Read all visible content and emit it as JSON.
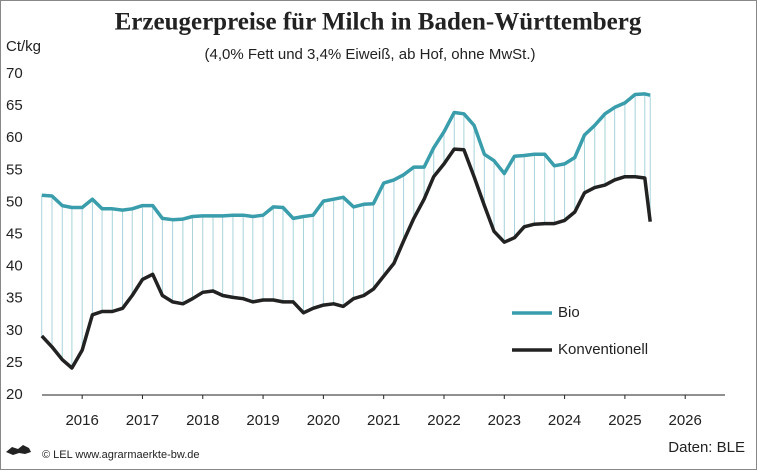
{
  "chart_data": {
    "type": "line",
    "title": "Erzeugerpreise für Milch in Baden-Württemberg",
    "subtitle": "(4,0% Fett und 3,4% Eiweiß, ab Hof, ohne MwSt.)",
    "y_label": "Ct/kg",
    "source": "Daten: BLE",
    "credit": "© LEL www.agrarmaerkte-bw.de",
    "xlim": [
      2015.834,
      2027.16
    ],
    "ylim": [
      20,
      70
    ],
    "yticks": [
      20,
      25,
      30,
      35,
      40,
      45,
      50,
      55,
      60,
      65,
      70
    ],
    "xticks": [
      {
        "value": 2016.5,
        "label": "2016"
      },
      {
        "value": 2017.5,
        "label": "2017"
      },
      {
        "value": 2018.5,
        "label": "2018"
      },
      {
        "value": 2019.5,
        "label": "2019"
      },
      {
        "value": 2020.5,
        "label": "2020"
      },
      {
        "value": 2021.5,
        "label": "2021"
      },
      {
        "value": 2022.5,
        "label": "2022"
      },
      {
        "value": 2023.5,
        "label": "2023"
      },
      {
        "value": 2024.5,
        "label": "2024"
      },
      {
        "value": 2025.5,
        "label": "2025"
      },
      {
        "value": 2026.5,
        "label": "2026"
      }
    ],
    "grid": false,
    "x": [
      2015.83,
      2016,
      2016.17,
      2016.33,
      2016.5,
      2016.67,
      2016.83,
      2017,
      2017.17,
      2017.33,
      2017.5,
      2017.67,
      2017.83,
      2018,
      2018.17,
      2018.33,
      2018.5,
      2018.67,
      2018.83,
      2019,
      2019.17,
      2019.33,
      2019.5,
      2019.67,
      2019.83,
      2020,
      2020.17,
      2020.33,
      2020.5,
      2020.67,
      2020.83,
      2021,
      2021.17,
      2021.33,
      2021.5,
      2021.67,
      2021.83,
      2022,
      2022.17,
      2022.33,
      2022.5,
      2022.67,
      2022.83,
      2023,
      2023.17,
      2023.33,
      2023.5,
      2023.67,
      2023.83,
      2024,
      2024.17,
      2024.33,
      2024.5,
      2024.67,
      2024.83,
      2025,
      2025.17,
      2025.33,
      2025.5,
      2025.67,
      2025.83,
      2025.92
    ],
    "series": [
      {
        "name": "Bio",
        "color": "#3a9dac",
        "values": [
          51.1,
          51,
          49.5,
          49.2,
          49.2,
          50.5,
          49,
          49,
          48.8,
          49,
          49.5,
          49.5,
          47.5,
          47.3,
          47.4,
          47.8,
          47.9,
          47.9,
          47.9,
          48,
          48,
          47.8,
          48,
          49.3,
          49.2,
          47.5,
          47.8,
          48,
          50.2,
          50.5,
          50.8,
          49.3,
          49.7,
          49.8,
          53,
          53.5,
          54.3,
          55.5,
          55.5,
          58.5,
          61,
          64,
          63.8,
          62,
          57.5,
          56.5,
          54.5,
          57.2,
          57.3,
          57.5,
          57.5,
          55.7,
          56,
          57,
          60.5,
          62,
          63.8,
          64.8,
          65.5,
          66.8,
          66.9,
          66.7
        ]
      },
      {
        "name": "Konventionell",
        "color": "#222222",
        "values": [
          29.2,
          27.5,
          25.5,
          24.2,
          27,
          32.5,
          33,
          33,
          33.5,
          35.5,
          38,
          38.8,
          35.5,
          34.5,
          34.2,
          35,
          36,
          36.2,
          35.5,
          35.2,
          35,
          34.5,
          34.8,
          34.8,
          34.5,
          34.5,
          32.8,
          33.5,
          34,
          34.2,
          33.8,
          35,
          35.5,
          36.5,
          38.5,
          40.5,
          44,
          47.5,
          50.5,
          54,
          56,
          58.3,
          58.2,
          54,
          49.5,
          45.5,
          43.8,
          44.5,
          46.2,
          46.6,
          46.7,
          46.7,
          47.2,
          48.5,
          51.5,
          52.3,
          52.7,
          53.5,
          54,
          54,
          53.8,
          47
        ]
      }
    ]
  }
}
